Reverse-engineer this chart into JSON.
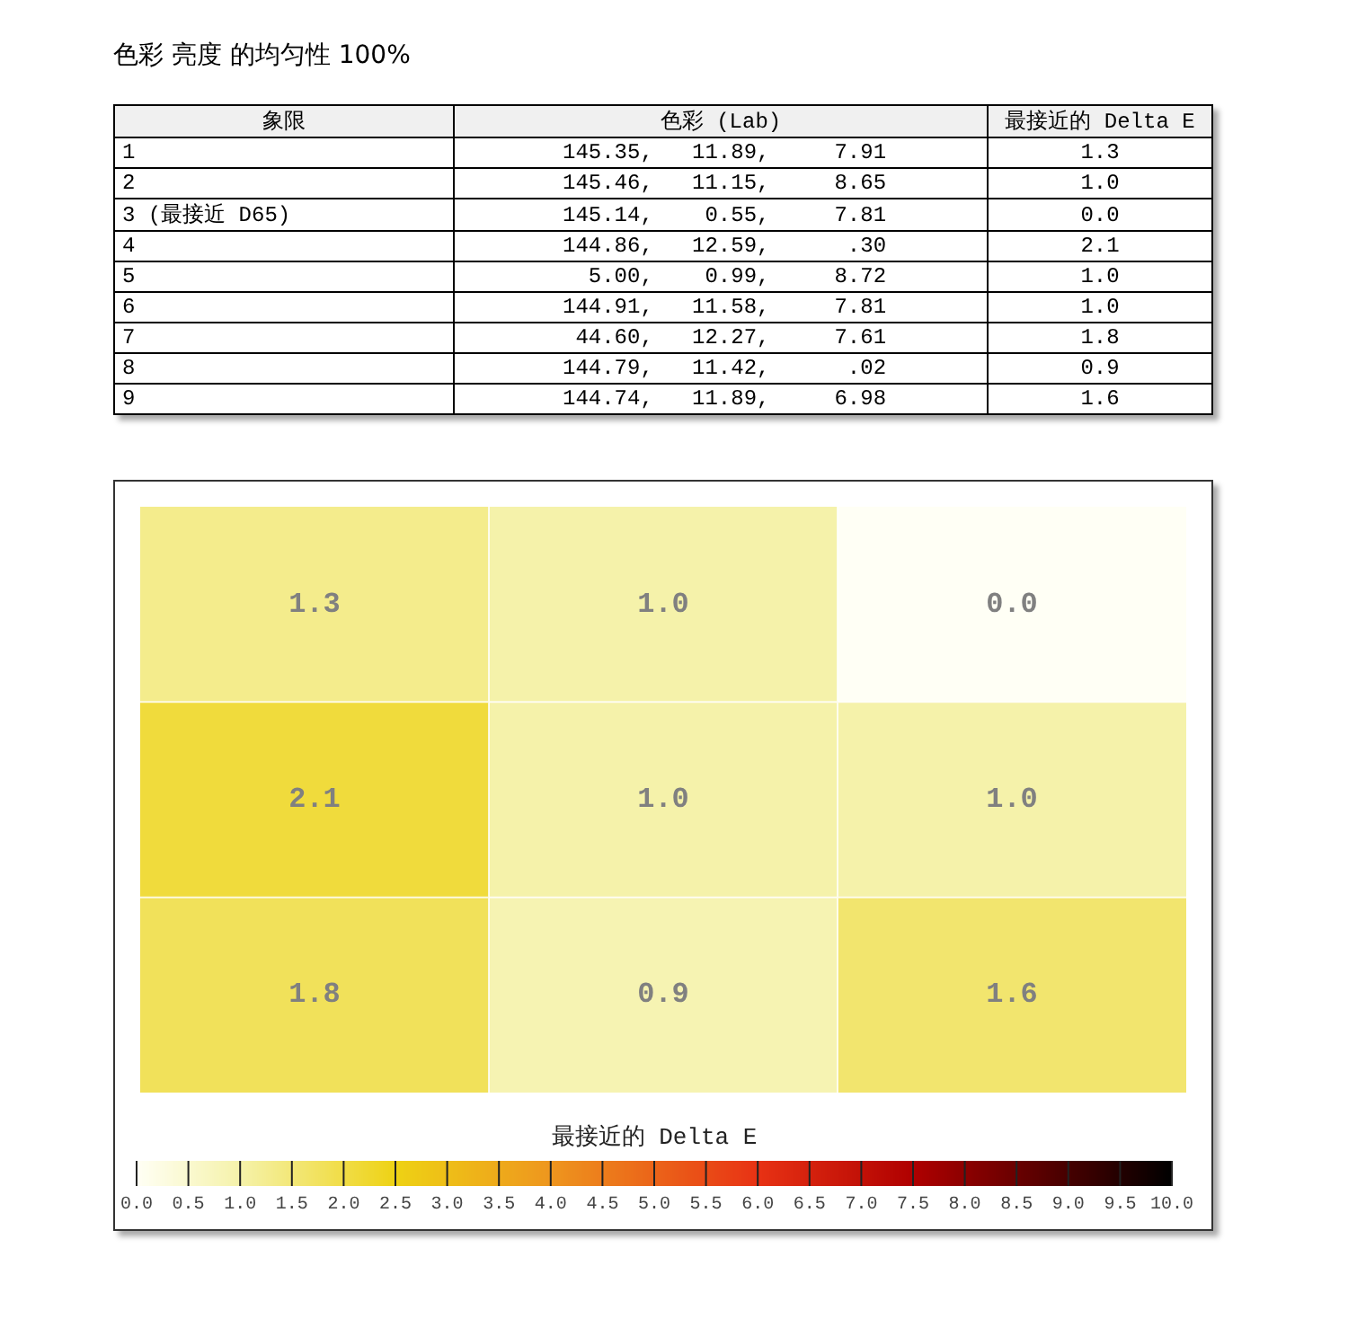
{
  "chart_data": [
    {
      "type": "other",
      "title": "色彩 亮度 的均匀性 100%",
      "annotations": [
        "象限",
        "色彩 (Lab)",
        "最接近的 Delta E",
        "1",
        "145.35,   11.89,     7.91",
        "1.3",
        "2",
        "145.46,   11.15,     8.65",
        "1.0",
        "3 (最接近 D65)",
        "145.14,    0.55,     7.81",
        "0.0",
        "4",
        "144.86,   12.59,      .30",
        "2.1",
        "5",
        "  5.00,    0.99,     8.72",
        "1.0",
        "6",
        "144.91,   11.58,     7.81",
        "1.0",
        "7",
        " 44.60,   12.27,     7.61",
        "1.8",
        "8",
        "144.79,   11.42,      .02",
        "0.9",
        "9",
        "144.74,   11.89,     6.98",
        "1.6"
      ]
    },
    {
      "type": "heatmap",
      "categories": [
        null,
        null,
        null
      ],
      "y_categories": [
        null,
        null,
        null
      ],
      "cells": [
        [
          1.3,
          1.0,
          0.0
        ],
        [
          2.1,
          1.0,
          1.0
        ],
        [
          1.8,
          0.9,
          1.6
        ]
      ],
      "cell_labels": [
        [
          "1.3",
          "1.0",
          "0.0"
        ],
        [
          "2.1",
          "1.0",
          "1.0"
        ],
        [
          "1.8",
          "0.9",
          "1.6"
        ]
      ],
      "clim": [
        0,
        10
      ],
      "clabel": "最接近的 Delta E",
      "grid": true,
      "cticks": [
        {
          "value": 0,
          "label": "0.0"
        },
        0.5,
        {
          "value": 1,
          "label": "1.0"
        },
        1.5,
        {
          "value": 2,
          "label": "2.0"
        },
        2.5,
        {
          "value": 3,
          "label": "3.0"
        },
        3.5,
        {
          "value": 4,
          "label": "4.0"
        },
        4.5,
        {
          "value": 5,
          "label": "5.0"
        },
        5.5,
        {
          "value": 6,
          "label": "6.0"
        },
        6.5,
        {
          "value": 7,
          "label": "7.0"
        },
        7.5,
        {
          "value": 8,
          "label": "8.0"
        },
        8.5,
        {
          "value": 9,
          "label": "9.0"
        },
        9.5,
        {
          "value": 10,
          "label": "10.0"
        }
      ]
    }
  ]
}
